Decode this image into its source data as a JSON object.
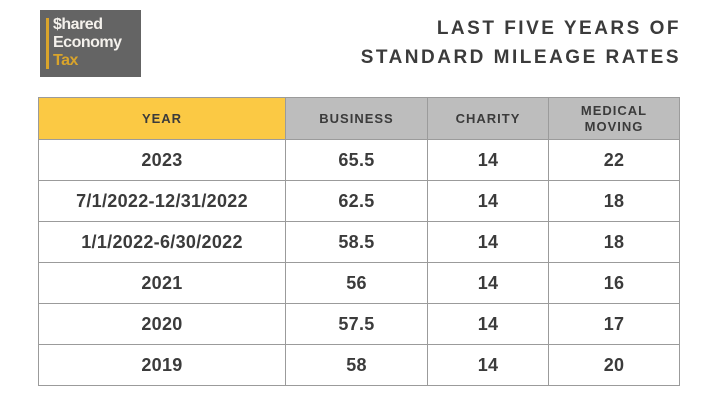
{
  "logo": {
    "line1": "$hared",
    "line2": "Economy",
    "line3": "Tax",
    "bg_color": "#646464",
    "accent_color": "#d9a42b",
    "text_color": "#f4f1ec"
  },
  "title": {
    "line1": "LAST FIVE YEARS OF",
    "line2": "STANDARD MILEAGE RATES",
    "color": "#3b3b3b"
  },
  "table": {
    "header": {
      "year": "YEAR",
      "business": "BUSINESS",
      "charity": "CHARITY",
      "medical_line1": "MEDICAL",
      "medical_line2": "MOVING"
    },
    "header_colors": {
      "year_bg": "#fbc944",
      "others_bg": "#bdbdbd"
    },
    "border_color": "#9b9b9b",
    "text_color": "#3b3b3b"
  },
  "chart_data": {
    "type": "table",
    "title": "LAST FIVE YEARS OF STANDARD MILEAGE RATES",
    "columns": [
      "YEAR",
      "BUSINESS",
      "CHARITY",
      "MEDICAL MOVING"
    ],
    "rows": [
      [
        "2023",
        65.5,
        14,
        22
      ],
      [
        "7/1/2022-12/31/2022",
        62.5,
        14,
        18
      ],
      [
        "1/1/2022-6/30/2022",
        58.5,
        14,
        18
      ],
      [
        "2021",
        56,
        14,
        16
      ],
      [
        "2020",
        57.5,
        14,
        17
      ],
      [
        "2019",
        58,
        14,
        20
      ]
    ]
  }
}
